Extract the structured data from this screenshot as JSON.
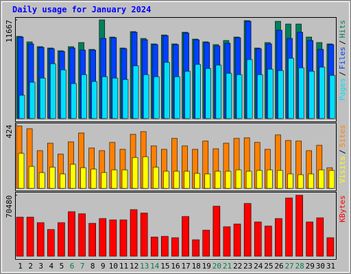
{
  "chart_data": [
    {
      "type": "bar",
      "title": "Daily usage for January 2024",
      "ylim": [
        0,
        11667
      ],
      "yticks": [
        11667
      ],
      "legend_separator": "/",
      "series": [
        {
          "name": "Hits",
          "color": "#00805c",
          "values": [
            9720,
            9072,
            8505,
            8343,
            8019,
            8505,
            8991,
            8181,
            11667,
            9639,
            8343,
            10287,
            9477,
            8829,
            9882,
            8829,
            10206,
            9396,
            9072,
            8748,
            9234,
            9639,
            11583,
            8343,
            8991,
            11502,
            11178,
            11178,
            9639,
            8991,
            8829
          ]
        },
        {
          "name": "Files",
          "color": "#0040ff",
          "values": [
            9639,
            8829,
            8424,
            8262,
            7938,
            8343,
            8100,
            8100,
            9477,
            9558,
            8262,
            10206,
            9315,
            8748,
            9801,
            8748,
            10125,
            9315,
            8991,
            8586,
            8910,
            9558,
            11502,
            8262,
            8829,
            10449,
            9477,
            10206,
            9234,
            8181,
            8748
          ]
        },
        {
          "name": "Pages",
          "color": "#00e0ff",
          "values": [
            2754,
            4293,
            4779,
            6480,
            5751,
            4131,
            5184,
            4374,
            4941,
            4779,
            4617,
            6237,
            5184,
            4941,
            6642,
            4941,
            5589,
            6399,
            5913,
            6318,
            5346,
            5184,
            6966,
            5184,
            5832,
            5670,
            7128,
            5994,
            5589,
            6075,
            5103
          ]
        }
      ]
    },
    {
      "type": "bar",
      "ylim": [
        0,
        424
      ],
      "yticks": [
        424
      ],
      "legend_separator": "/",
      "series": [
        {
          "name": "Sites",
          "color": "#ff8000",
          "values": [
            415,
            397,
            251,
            301,
            228,
            310,
            369,
            269,
            251,
            306,
            260,
            360,
            378,
            283,
            260,
            333,
            283,
            260,
            315,
            264,
            301,
            333,
            337,
            306,
            260,
            356,
            319,
            315,
            251,
            287,
            137
          ]
        },
        {
          "name": "Visits",
          "color": "#ffff00",
          "values": [
            233,
            146,
            105,
            141,
            96,
            160,
            137,
            128,
            105,
            123,
            123,
            205,
            210,
            141,
            114,
            114,
            114,
            100,
            96,
            114,
            114,
            123,
            114,
            119,
            123,
            119,
            96,
            91,
            96,
            123,
            119
          ]
        }
      ]
    },
    {
      "type": "bar",
      "ylim": [
        0,
        70480
      ],
      "yticks": [
        70480
      ],
      "categories": [
        "1",
        "2",
        "3",
        "4",
        "5",
        "6",
        "7",
        "8",
        "9",
        "10",
        "11",
        "12",
        "13",
        "14",
        "15",
        "16",
        "17",
        "18",
        "19",
        "20",
        "21",
        "22",
        "23",
        "24",
        "25",
        "26",
        "27",
        "28",
        "29",
        "30",
        "31"
      ],
      "weekend_categories": [
        "6",
        "7",
        "13",
        "14",
        "20",
        "21",
        "27",
        "28"
      ],
      "weekend_color": "#008040",
      "series": [
        {
          "name": "KBytes",
          "color": "#ff0000",
          "values": [
            45144,
            45144,
            38808,
            30888,
            38808,
            51480,
            49104,
            38016,
            43560,
            41976,
            41976,
            53856,
            49896,
            22176,
            22968,
            21384,
            45936,
            19008,
            30096,
            57816,
            34056,
            37224,
            60984,
            39600,
            34848,
            43560,
            67320,
            70480,
            39600,
            44352,
            21384
          ]
        }
      ]
    }
  ]
}
